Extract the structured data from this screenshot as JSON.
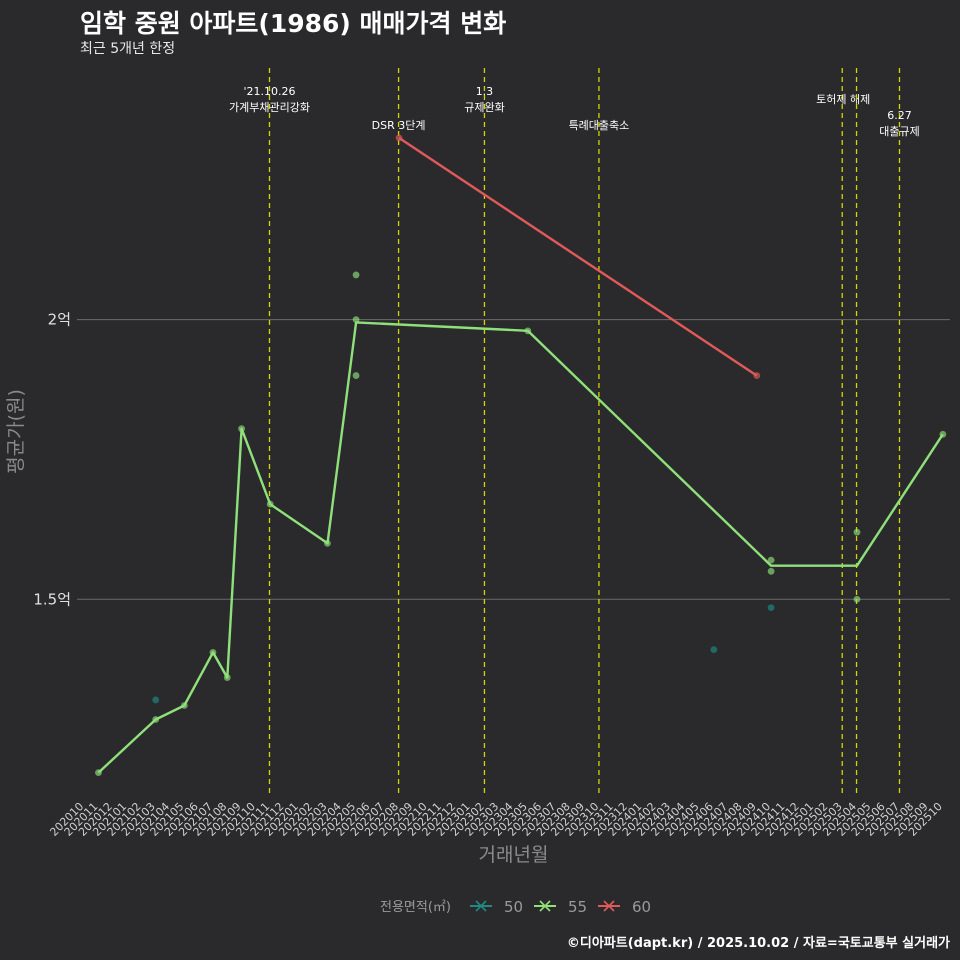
{
  "header": {
    "title": "임학 중원 아파트(1986) 매매가격 변화",
    "subtitle": "최근 5개년 한정"
  },
  "footer": {
    "credit": "©디아파트(dapt.kr) / 2025.10.02 / 자료=국토교통부 실거래가"
  },
  "colors": {
    "background": "#2a2a2c",
    "grid": "#6a6a6a",
    "event_line": "#d4d400",
    "series_50": "#1f8a82",
    "series_55": "#8fe07a",
    "series_60": "#e05a5a"
  },
  "chart_data": {
    "type": "line",
    "title": "임학 중원 아파트(1986) 매매가격 변화",
    "subtitle": "최근 5개년 한정",
    "xlabel": "거래년월",
    "ylabel": "평균가(원)",
    "ylim": [
      115000000,
      245000000
    ],
    "x_categories": [
      "202010",
      "202011",
      "202012",
      "202101",
      "202102",
      "202103",
      "202104",
      "202105",
      "202106",
      "202107",
      "202108",
      "202109",
      "202110",
      "202111",
      "202112",
      "202201",
      "202202",
      "202203",
      "202204",
      "202205",
      "202206",
      "202207",
      "202208",
      "202209",
      "202210",
      "202211",
      "202212",
      "202301",
      "202302",
      "202303",
      "202304",
      "202305",
      "202306",
      "202307",
      "202308",
      "202309",
      "202310",
      "202311",
      "202312",
      "202401",
      "202402",
      "202403",
      "202404",
      "202405",
      "202406",
      "202407",
      "202408",
      "202409",
      "202410",
      "202411",
      "202412",
      "202501",
      "202502",
      "202503",
      "202504",
      "202505",
      "202506",
      "202507",
      "202508",
      "202509",
      "202510"
    ],
    "y_ticks": [
      {
        "value": 150000000,
        "label": "1.5억"
      },
      {
        "value": 200000000,
        "label": "2억"
      }
    ],
    "legend": {
      "title": "전용면적(㎡)",
      "position": "bottom",
      "items": [
        {
          "label": "50",
          "color": "#1f8a82"
        },
        {
          "label": "55",
          "color": "#8fe07a"
        },
        {
          "label": "60",
          "color": "#e05a5a"
        }
      ]
    },
    "events": [
      {
        "x": 12.95,
        "lines": [
          "'21.10.26",
          "가계부채관리강화"
        ],
        "label_row": 0
      },
      {
        "x": 21.97,
        "lines": [
          "DSR 3단계"
        ],
        "label_row": 1
      },
      {
        "x": 27.97,
        "lines": [
          "1.3",
          "규제완화"
        ],
        "label_row": 0
      },
      {
        "x": 35.97,
        "lines": [
          "특례대출축소"
        ],
        "label_row": 1
      },
      {
        "x": 52.97,
        "lines": [
          "토허제 해제"
        ],
        "label_row": 0,
        "label_offset": 0.07
      },
      {
        "x": 53.97,
        "lines": [],
        "label_row": 0
      },
      {
        "x": 56.97,
        "lines": [
          "6.27",
          "대출규제"
        ],
        "label_row": 2
      }
    ],
    "series": [
      {
        "name": "50",
        "color": "#1f8a82",
        "line": [],
        "points": [
          {
            "x": 5,
            "y": 132000000
          },
          {
            "x": 44,
            "y": 141000000
          },
          {
            "x": 48,
            "y": 148500000
          }
        ]
      },
      {
        "name": "55",
        "color": "#8fe07a",
        "line": [
          {
            "x": 1,
            "y": 119000000
          },
          {
            "x": 5,
            "y": 128500000
          },
          {
            "x": 7,
            "y": 131000000
          },
          {
            "x": 9,
            "y": 140500000
          },
          {
            "x": 10,
            "y": 136000000
          },
          {
            "x": 11,
            "y": 180500000
          },
          {
            "x": 13,
            "y": 167000000
          },
          {
            "x": 17,
            "y": 160000000
          },
          {
            "x": 19,
            "y": 199500000
          },
          {
            "x": 31,
            "y": 198000000
          },
          {
            "x": 48,
            "y": 156000000
          },
          {
            "x": 54,
            "y": 156000000
          },
          {
            "x": 60,
            "y": 179500000
          }
        ],
        "points": [
          {
            "x": 1,
            "y": 119000000
          },
          {
            "x": 5,
            "y": 128500000
          },
          {
            "x": 7,
            "y": 131000000
          },
          {
            "x": 9,
            "y": 140500000
          },
          {
            "x": 10,
            "y": 136000000
          },
          {
            "x": 11,
            "y": 180500000
          },
          {
            "x": 13,
            "y": 167000000
          },
          {
            "x": 17,
            "y": 160000000
          },
          {
            "x": 19,
            "y": 208000000
          },
          {
            "x": 19,
            "y": 200000000
          },
          {
            "x": 19,
            "y": 190000000
          },
          {
            "x": 31,
            "y": 198000000
          },
          {
            "x": 48,
            "y": 157000000
          },
          {
            "x": 48,
            "y": 155000000
          },
          {
            "x": 54,
            "y": 162000000
          },
          {
            "x": 54,
            "y": 150000000
          },
          {
            "x": 60,
            "y": 179500000
          }
        ]
      },
      {
        "name": "60",
        "color": "#e05a5a",
        "line": [
          {
            "x": 22,
            "y": 232500000
          },
          {
            "x": 47,
            "y": 190000000
          }
        ],
        "points": [
          {
            "x": 22,
            "y": 232500000
          },
          {
            "x": 47,
            "y": 190000000
          }
        ]
      }
    ]
  }
}
